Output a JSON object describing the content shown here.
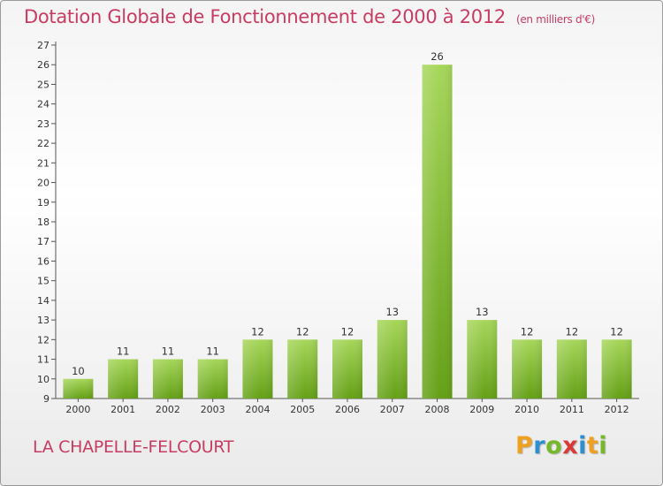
{
  "header": {
    "title": "Dotation Globale de Fonctionnement de 2000 à 2012",
    "subtitle": "(en milliers d'€)"
  },
  "footer": {
    "commune": "LA CHAPELLE-FELCOURT",
    "logo": {
      "p": "P",
      "r": "r",
      "o": "o",
      "x": "x",
      "i": "i",
      "t": "t",
      "i2": "i"
    }
  },
  "colors": {
    "title": "#c83c64",
    "bar_light": "#a6d65a",
    "bar_dark": "#64a016"
  },
  "chart_data": {
    "type": "bar",
    "title": "Dotation Globale de Fonctionnement de 2000 à 2012",
    "subtitle": "(en milliers d'€)",
    "categories": [
      "2000",
      "2001",
      "2002",
      "2003",
      "2004",
      "2005",
      "2006",
      "2007",
      "2008",
      "2009",
      "2010",
      "2011",
      "2012"
    ],
    "values": [
      10,
      11,
      11,
      11,
      12,
      12,
      12,
      13,
      26,
      13,
      12,
      12,
      12
    ],
    "ylim": [
      9,
      27
    ],
    "yticks": [
      9,
      10,
      11,
      12,
      13,
      14,
      15,
      16,
      17,
      18,
      19,
      20,
      21,
      22,
      23,
      24,
      25,
      26,
      27
    ],
    "grid": false,
    "legend": "none"
  }
}
